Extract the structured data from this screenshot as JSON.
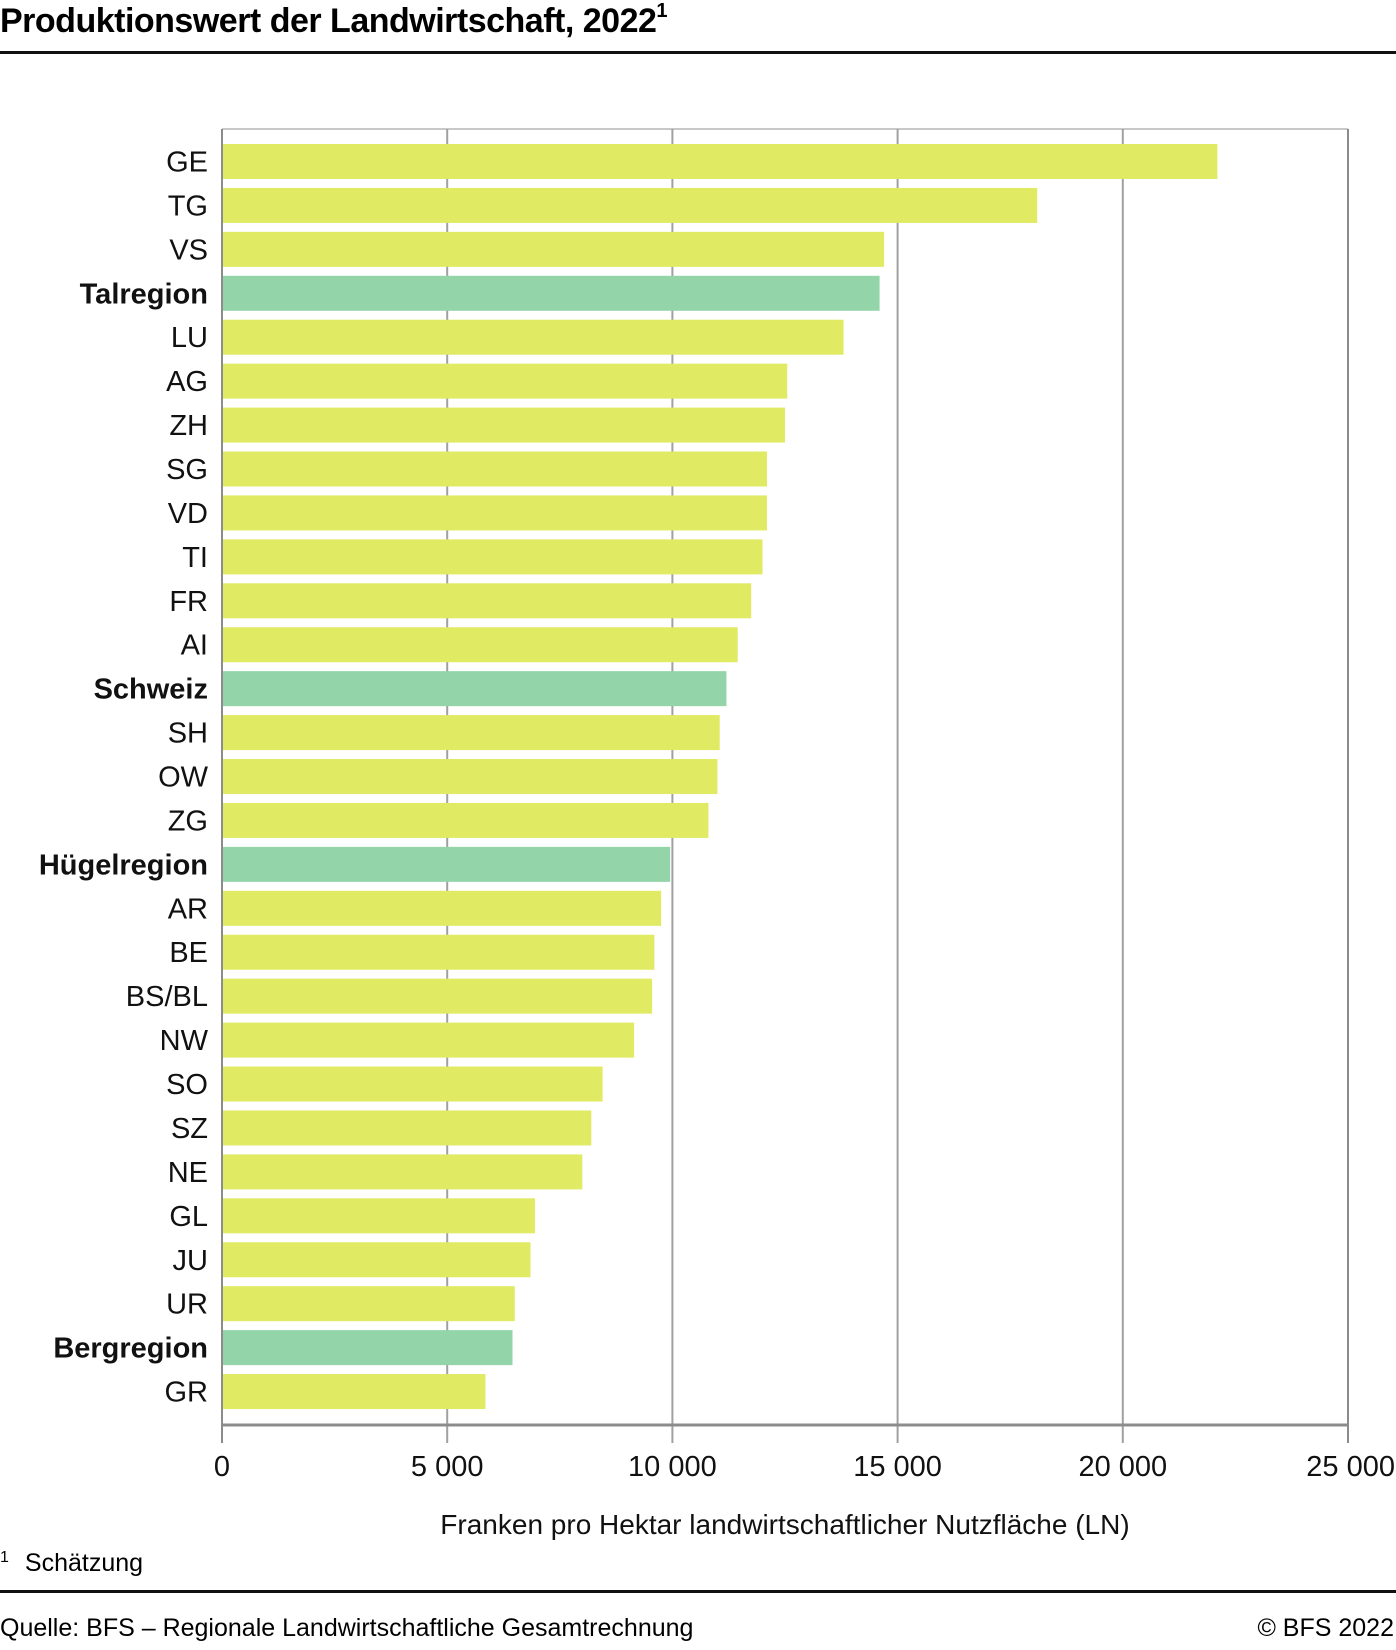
{
  "header": {
    "title": "Produktionswert der Landwirtschaft, 2022",
    "title_footnote_mark": "1"
  },
  "footer": {
    "footnote_mark": "1",
    "footnote_text": "Schätzung",
    "source": "Quelle: BFS – Regionale Landwirtschaftliche Gesamtrechnung",
    "copyright": "© BFS 2022"
  },
  "colors": {
    "canton_bar": "#e0ea62",
    "region_bar": "#93d4a9",
    "grid": "#a0a0a0",
    "axis": "#8c8c8c"
  },
  "chart_data": {
    "type": "bar",
    "orientation": "horizontal",
    "title": "Produktionswert der Landwirtschaft, 2022",
    "xlabel": "Franken pro Hektar landwirtschaftlicher Nutzfläche (LN)",
    "ylabel": "",
    "xlim": [
      0,
      25000
    ],
    "xticks": [
      0,
      5000,
      10000,
      15000,
      20000,
      25000
    ],
    "xtick_labels": [
      "0",
      "5 000",
      "10 000",
      "15 000",
      "20 000",
      "25 000"
    ],
    "grid": true,
    "legend": "none",
    "categories": [
      "GE",
      "TG",
      "VS",
      "Talregion",
      "LU",
      "AG",
      "ZH",
      "SG",
      "VD",
      "TI",
      "FR",
      "AI",
      "Schweiz",
      "SH",
      "OW",
      "ZG",
      "Hügelregion",
      "AR",
      "BE",
      "BS/BL",
      "NW",
      "SO",
      "SZ",
      "NE",
      "GL",
      "JU",
      "UR",
      "Bergregion",
      "GR"
    ],
    "values": [
      22100,
      18100,
      14700,
      14600,
      13800,
      12550,
      12500,
      12100,
      12100,
      12000,
      11750,
      11450,
      11200,
      11050,
      11000,
      10800,
      9950,
      9750,
      9600,
      9550,
      9150,
      8450,
      8200,
      8000,
      6950,
      6850,
      6500,
      6450,
      5850
    ],
    "is_region": [
      false,
      false,
      false,
      true,
      false,
      false,
      false,
      false,
      false,
      false,
      false,
      false,
      true,
      false,
      false,
      false,
      true,
      false,
      false,
      false,
      false,
      false,
      false,
      false,
      false,
      false,
      false,
      true,
      false
    ]
  }
}
